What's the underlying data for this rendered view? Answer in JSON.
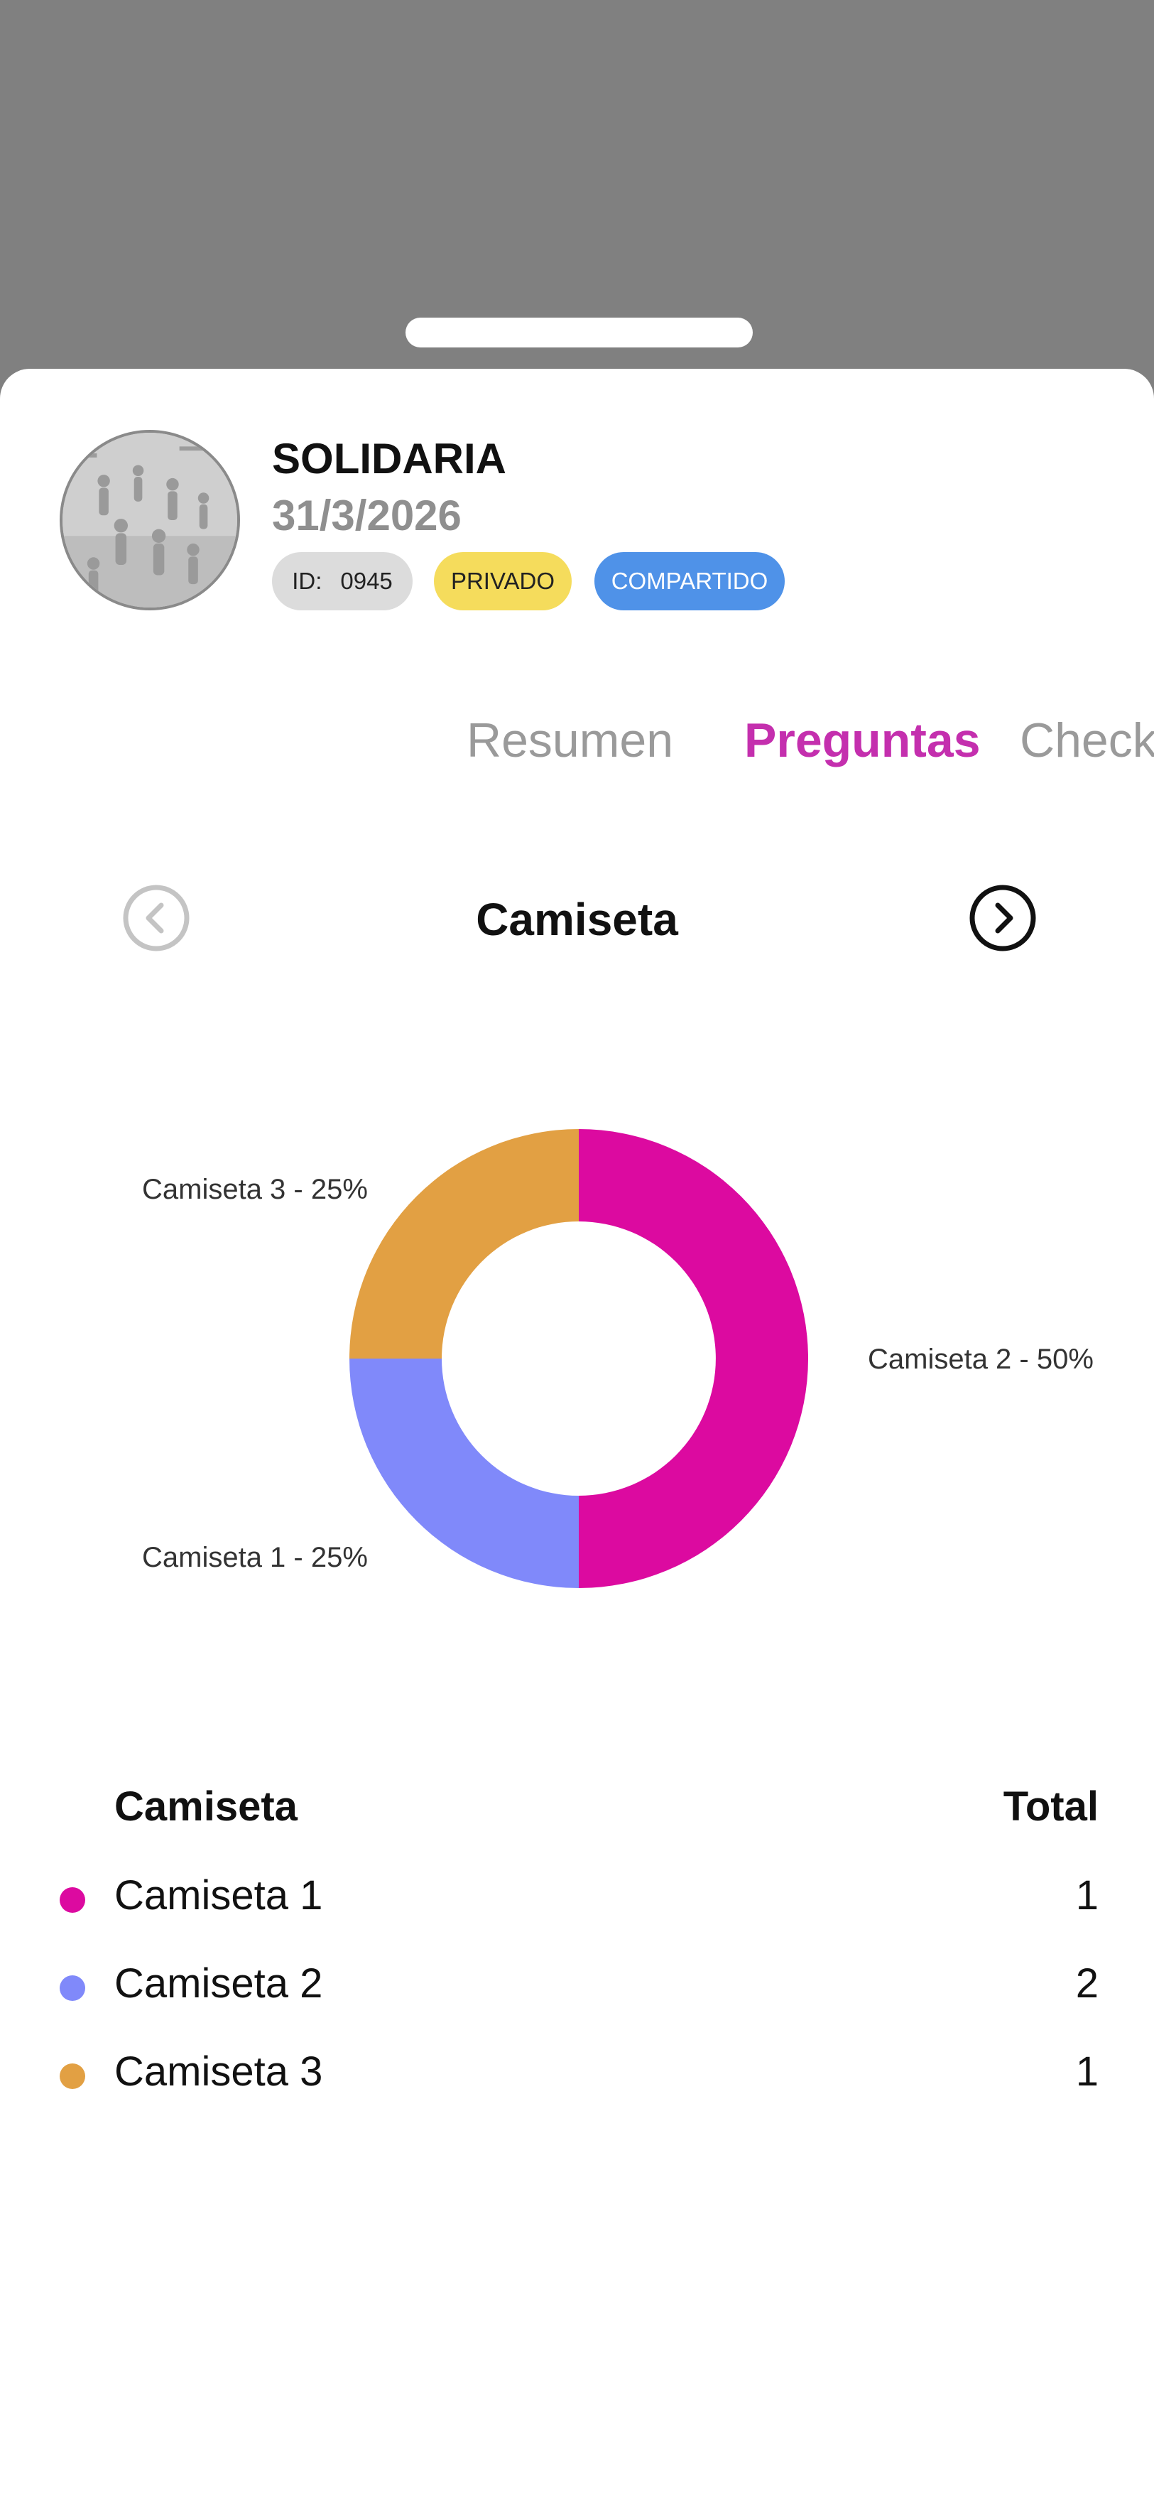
{
  "event": {
    "name": "SOLIDARIA",
    "date": "31/3/2026",
    "id_label": "ID:",
    "id_value": "0945",
    "privacy_badge": "PRIVADO",
    "shared_badge": "COMPARTIDO"
  },
  "tabs": [
    {
      "label": "Resumen",
      "active": false
    },
    {
      "label": "Preguntas",
      "active": true
    },
    {
      "label": "Check",
      "active": false
    }
  ],
  "question": {
    "title": "Camiseta",
    "prev_icon": "chevron-left-circle-icon",
    "next_icon": "chevron-right-circle-icon"
  },
  "chart_data": {
    "type": "pie",
    "donut": true,
    "slices": [
      {
        "label": "Camiseta 2 - 50%",
        "name": "Camiseta 2",
        "value": 50,
        "color": "#dc0aa0"
      },
      {
        "label": "Camiseta 1 - 25%",
        "name": "Camiseta 1",
        "value": 25,
        "color": "#8089fa"
      },
      {
        "label": "Camiseta 3 - 25%",
        "name": "Camiseta 3",
        "value": 25,
        "color": "#e2a043"
      }
    ]
  },
  "table": {
    "header_name": "Camiseta",
    "header_total": "Total",
    "rows": [
      {
        "name": "Camiseta 1",
        "total": "1",
        "color": "#dc0aa0"
      },
      {
        "name": "Camiseta 2",
        "total": "2",
        "color": "#8089fa"
      },
      {
        "name": "Camiseta 3",
        "total": "1",
        "color": "#e2a043"
      }
    ]
  }
}
